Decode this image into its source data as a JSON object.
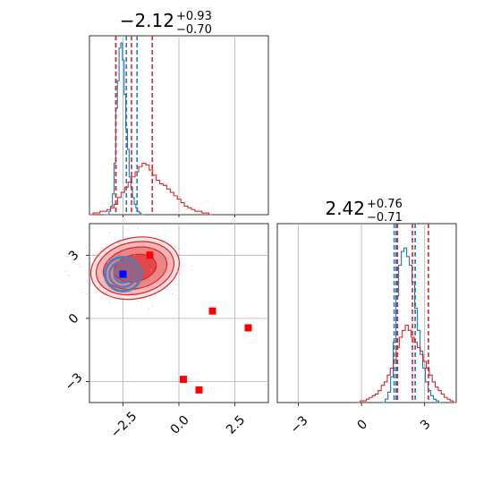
{
  "chart_data": [
    {
      "type": "histogram",
      "panel": "top-left marginal",
      "title": {
        "value": "−2.12",
        "plus": "+0.93",
        "minus": "−0.70"
      },
      "xlim": [
        -4.0,
        4.0
      ],
      "grid": true,
      "series": [
        {
          "color": "#1f77b4",
          "step_heights": [
            0,
            0,
            0,
            0.02,
            0.05,
            0.12,
            0.3,
            0.62,
            0.78,
            0.97,
            1.0,
            0.9,
            0.7,
            0.5,
            0.38,
            0.22,
            0.16,
            0.1,
            0.06,
            0.04,
            0.02,
            0.01,
            0,
            0
          ],
          "x_range": [
            -3.35,
            -1.55
          ],
          "quantile_lines": [
            -2.82,
            -2.35,
            -1.87
          ]
        },
        {
          "color": "#d62728",
          "step_heights": [
            0,
            0.01,
            0.01,
            0.02,
            0.02,
            0.03,
            0.04,
            0.06,
            0.1,
            0.13,
            0.16,
            0.19,
            0.22,
            0.25,
            0.28,
            0.3,
            0.29,
            0.26,
            0.23,
            0.2,
            0.18,
            0.17,
            0.15,
            0.13,
            0.11,
            0.09,
            0.07,
            0.05,
            0.04,
            0.03,
            0.02,
            0.02,
            0.01,
            0.01,
            0
          ],
          "x_range": [
            -4.0,
            1.5
          ],
          "quantile_lines": [
            -2.82,
            -2.12,
            -1.19
          ]
        }
      ]
    },
    {
      "type": "scatter",
      "panel": "bottom-left 2D",
      "xlim": [
        -4.0,
        4.0
      ],
      "ylim": [
        -4.0,
        4.5
      ],
      "xticks": [
        "−2.5",
        "0.0",
        "2.5"
      ],
      "yticks": [
        "−3",
        "0",
        "3"
      ],
      "grid": true,
      "red_markers": [
        [
          -1.3,
          3.0
        ],
        [
          1.5,
          0.35
        ],
        [
          3.1,
          -0.45
        ],
        [
          0.2,
          -2.9
        ],
        [
          0.9,
          -3.4
        ]
      ],
      "blue_marker": [
        -2.5,
        2.05
      ],
      "red_contour_center": [
        -2.2,
        2.3
      ],
      "blue_contour_center": [
        -2.5,
        2.1
      ]
    },
    {
      "type": "histogram",
      "panel": "bottom-right marginal",
      "title": {
        "value": "2.42",
        "plus": "+0.76",
        "minus": "−0.71"
      },
      "xlim": [
        -4.0,
        4.5
      ],
      "xticks": [
        "−3",
        "0",
        "3"
      ],
      "grid": true,
      "series": [
        {
          "color": "#1f77b4",
          "step_heights": [
            0,
            0.02,
            0.06,
            0.15,
            0.35,
            0.62,
            0.8,
            0.88,
            0.9,
            0.85,
            0.8,
            0.7,
            0.55,
            0.42,
            0.3,
            0.2,
            0.12,
            0.07,
            0.04,
            0.02,
            0.01,
            0
          ],
          "x_range": [
            1.0,
            3.8
          ],
          "quantile_lines": [
            1.55,
            1.65,
            2.55
          ]
        },
        {
          "color": "#d62728",
          "step_heights": [
            0,
            0.01,
            0.01,
            0.02,
            0.03,
            0.04,
            0.05,
            0.07,
            0.1,
            0.12,
            0.16,
            0.2,
            0.25,
            0.32,
            0.38,
            0.42,
            0.45,
            0.42,
            0.38,
            0.35,
            0.32,
            0.28,
            0.24,
            0.2,
            0.16,
            0.12,
            0.09,
            0.07,
            0.05,
            0.03,
            0.02,
            0.01,
            0
          ],
          "x_range": [
            -0.2,
            4.5
          ],
          "quantile_lines": [
            1.71,
            2.42,
            3.18
          ]
        }
      ]
    }
  ]
}
